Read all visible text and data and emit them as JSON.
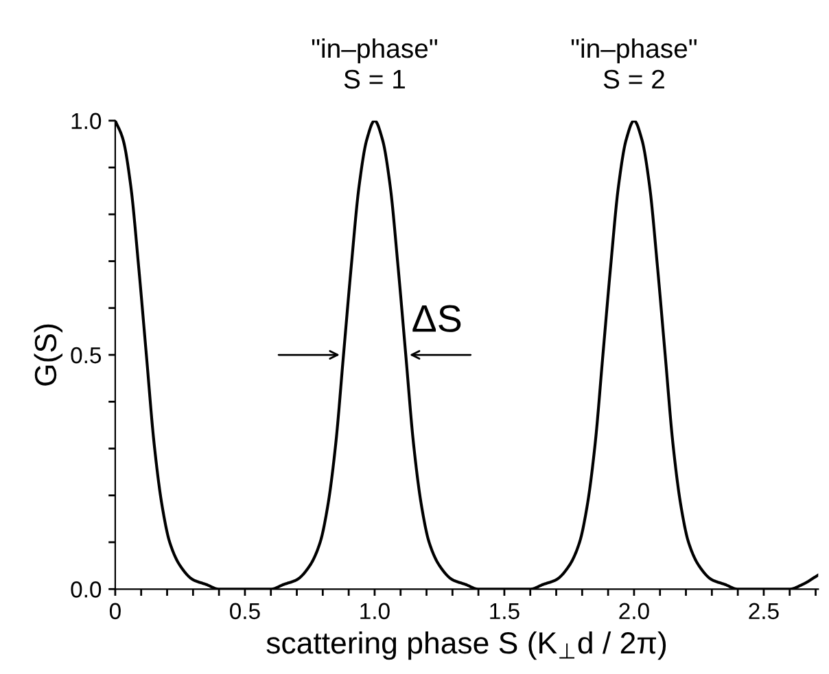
{
  "chart_data": {
    "type": "line",
    "xlabel": "scattering phase S (K$_{⊥}$d / 2π)",
    "ylabel": "G(S)",
    "series": [
      {
        "color": "#000000",
        "x": [
          0,
          0.03,
          0.06,
          0.09,
          0.12,
          0.15,
          0.18,
          0.21,
          0.25,
          0.3,
          0.35,
          0.4,
          0.45,
          0.5,
          0.55,
          0.6,
          0.65,
          0.7,
          0.75,
          0.79,
          0.82,
          0.85,
          0.88,
          0.91,
          0.94,
          0.97,
          1,
          1.03,
          1.06,
          1.09,
          1.12,
          1.15,
          1.18,
          1.21,
          1.25,
          1.3,
          1.35,
          1.4,
          1.45,
          1.5,
          1.55,
          1.6,
          1.65,
          1.7,
          1.75,
          1.79,
          1.82,
          1.85,
          1.88,
          1.91,
          1.94,
          1.97,
          2,
          2.03,
          2.06,
          2.09,
          2.12,
          2.15,
          2.18,
          2.21,
          2.25,
          2.3,
          2.35,
          2.4,
          2.45,
          2.5,
          2.55,
          2.6,
          2.65,
          2.71
        ],
        "values": [
          1,
          0.96,
          0.86,
          0.69,
          0.5,
          0.31,
          0.18,
          0.1,
          0.05,
          0.02,
          0.01,
          0,
          0,
          0,
          0,
          0,
          0.01,
          0.02,
          0.05,
          0.1,
          0.18,
          0.31,
          0.5,
          0.69,
          0.86,
          0.96,
          1,
          0.96,
          0.86,
          0.69,
          0.5,
          0.31,
          0.18,
          0.1,
          0.05,
          0.02,
          0.01,
          0,
          0,
          0,
          0,
          0,
          0.01,
          0.02,
          0.05,
          0.1,
          0.18,
          0.31,
          0.5,
          0.69,
          0.86,
          0.96,
          1,
          0.96,
          0.86,
          0.69,
          0.5,
          0.31,
          0.18,
          0.1,
          0.05,
          0.02,
          0.01,
          0,
          0,
          0,
          0,
          0,
          0.01,
          0.03
        ]
      }
    ],
    "xlim": [
      0,
      2.71
    ],
    "ylim": [
      0,
      1
    ],
    "xticks": [
      {
        "value": 0,
        "label": "0"
      },
      {
        "value": 0.1,
        "label": null
      },
      {
        "value": 0.2,
        "label": null
      },
      {
        "value": 0.3,
        "label": null
      },
      {
        "value": 0.4,
        "label": null
      },
      0.5,
      {
        "value": 0.6,
        "label": null
      },
      {
        "value": 0.7,
        "label": null
      },
      {
        "value": 0.8,
        "label": null
      },
      {
        "value": 0.9,
        "label": null
      },
      {
        "value": 1,
        "label": "1.0"
      },
      {
        "value": 1.1,
        "label": null
      },
      {
        "value": 1.2,
        "label": null
      },
      {
        "value": 1.3,
        "label": null
      },
      {
        "value": 1.4,
        "label": null
      },
      1.5,
      {
        "value": 1.6,
        "label": null
      },
      {
        "value": 1.7,
        "label": null
      },
      {
        "value": 1.8,
        "label": null
      },
      {
        "value": 1.9,
        "label": null
      },
      {
        "value": 2,
        "label": "2.0"
      },
      {
        "value": 2.1,
        "label": null
      },
      {
        "value": 2.2,
        "label": null
      },
      {
        "value": 2.3,
        "label": null
      },
      {
        "value": 2.4,
        "label": null
      },
      2.5,
      {
        "value": 2.6,
        "label": null
      },
      {
        "value": 2.7,
        "label": null
      }
    ],
    "yticks": [
      {
        "value": 0,
        "label": "0.0"
      },
      {
        "value": 0.1,
        "label": null
      },
      {
        "value": 0.2,
        "label": null
      },
      {
        "value": 0.3,
        "label": null
      },
      {
        "value": 0.4,
        "label": null
      },
      0.5,
      {
        "value": 0.6,
        "label": null
      },
      {
        "value": 0.7,
        "label": null
      },
      {
        "value": 0.8,
        "label": null
      },
      {
        "value": 0.9,
        "label": null
      },
      {
        "value": 1,
        "label": "1.0"
      }
    ],
    "grid": false,
    "legend": false,
    "annotations": [
      {
        "text": "\"in–phase\"\nS = 1",
        "x": 1,
        "y": 1
      },
      {
        "text": "\"in–phase\"\nS = 2",
        "x": 2,
        "y": 1
      },
      "ΔS"
    ]
  }
}
